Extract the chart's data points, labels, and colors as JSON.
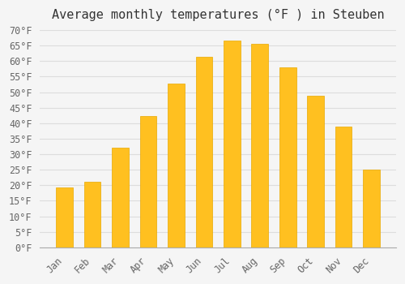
{
  "title": "Average monthly temperatures (°F ) in Steuben",
  "months": [
    "Jan",
    "Feb",
    "Mar",
    "Apr",
    "May",
    "Jun",
    "Jul",
    "Aug",
    "Sep",
    "Oct",
    "Nov",
    "Dec"
  ],
  "values": [
    19.4,
    21.2,
    32.0,
    42.4,
    52.7,
    61.5,
    66.6,
    65.5,
    57.9,
    48.9,
    38.8,
    25.0
  ],
  "bar_color": "#FFC020",
  "bar_edge_color": "#E8A800",
  "background_color": "#F5F5F5",
  "grid_color": "#DDDDDD",
  "text_color": "#666666",
  "ylim": [
    0,
    70
  ],
  "yticks": [
    0,
    5,
    10,
    15,
    20,
    25,
    30,
    35,
    40,
    45,
    50,
    55,
    60,
    65,
    70
  ],
  "title_fontsize": 11,
  "tick_fontsize": 8.5
}
